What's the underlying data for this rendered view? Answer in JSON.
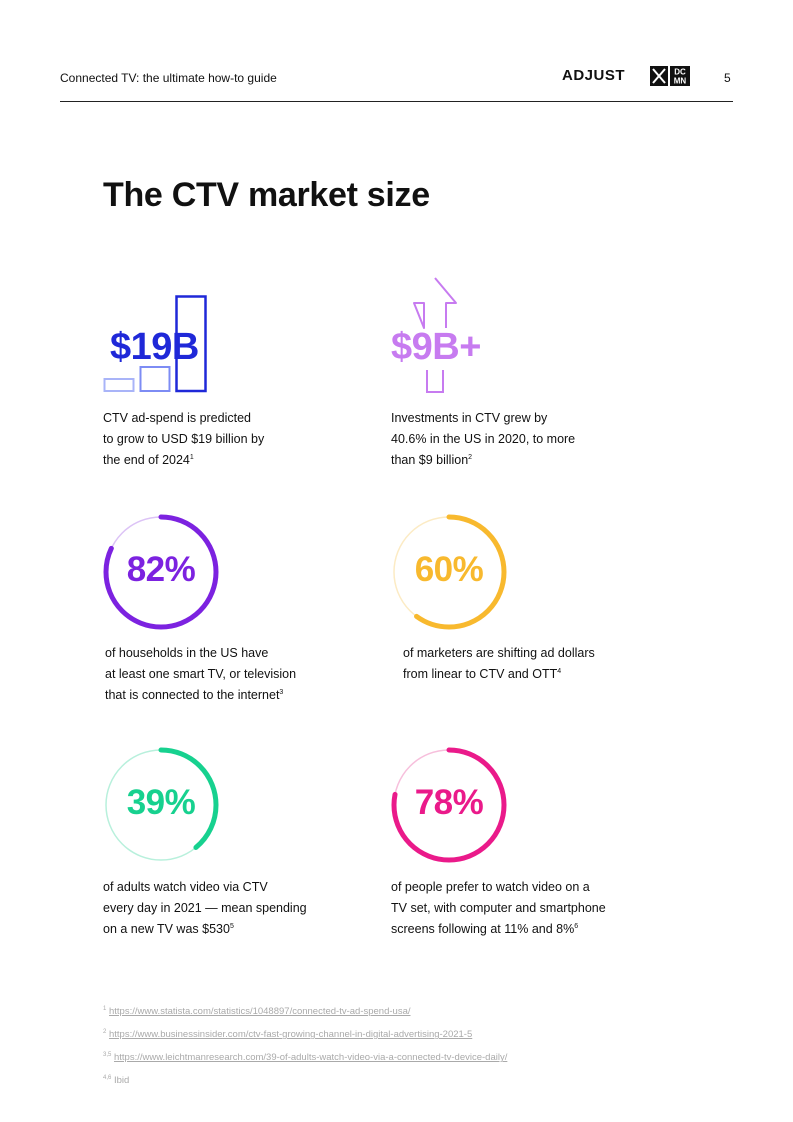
{
  "header": {
    "doc_title": "Connected TV: the ultimate how-to guide",
    "logo_adjust": "ADJUST",
    "logo_dcmn_top": "DC",
    "logo_dcmn_bottom": "MN",
    "page_number": "5"
  },
  "title": "The CTV market size",
  "colors": {
    "blue": "#1f28d8",
    "lilac": "#c77bf0",
    "purple": "#7c22e0",
    "amber": "#f8b92e",
    "green": "#17d18f",
    "pink": "#ea1a8a"
  },
  "stats": [
    {
      "value": "$19B",
      "icon": "bar-growth-icon",
      "lines": [
        "CTV ad-spend is predicted",
        "to grow to USD $19 billion by",
        "the end of 2024"
      ],
      "ref": "1"
    },
    {
      "value": "$9B+",
      "icon": "arrow-up-icon",
      "lines": [
        "Investments in CTV grew by",
        "40.6% in the US in 2020, to more",
        "than $9 billion"
      ],
      "ref": "2"
    },
    {
      "value": "82%",
      "percent": 82,
      "lines": [
        "of households in the US have",
        "at least one smart TV, or television",
        "that is connected to the internet"
      ],
      "ref": "3"
    },
    {
      "value": "60%",
      "percent": 60,
      "lines": [
        "of marketers are shifting ad dollars",
        "from linear to CTV and OTT"
      ],
      "ref": "4"
    },
    {
      "value": "39%",
      "percent": 39,
      "lines": [
        "of adults watch video via CTV",
        "every day in 2021 — mean spending",
        "on a new TV was $530"
      ],
      "ref": "5"
    },
    {
      "value": "78%",
      "percent": 78,
      "lines": [
        "of people prefer to watch video on a",
        "TV set, with computer and smartphone",
        "screens following at 11% and 8%"
      ],
      "ref": "6"
    }
  ],
  "footnotes": [
    {
      "ref": "1",
      "text": "https://www.statista.com/statistics/1048897/connected-tv-ad-spend-usa/"
    },
    {
      "ref": "2",
      "text": "https://www.businessinsider.com/ctv-fast-growing-channel-in-digital-advertising-2021-5"
    },
    {
      "ref": "3,5",
      "text": "https://www.leichtmanresearch.com/39-of-adults-watch-video-via-a-connected-tv-device-daily/"
    },
    {
      "ref": "4,6",
      "text": "Ibid"
    }
  ]
}
